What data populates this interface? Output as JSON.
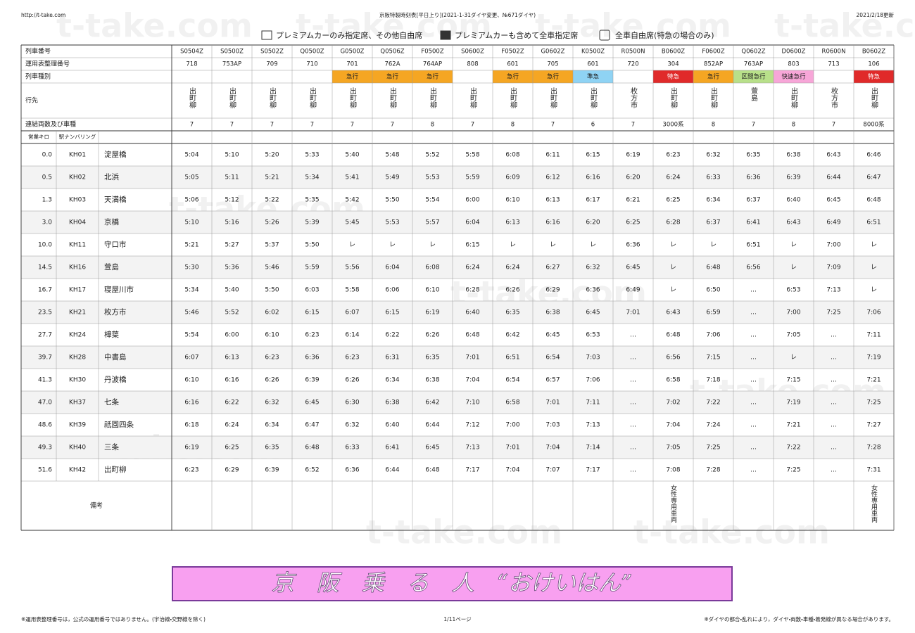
{
  "header": {
    "url": "http://t-take.com",
    "title": "京阪特製時刻表[平日上り](2021-1-31ダイヤ変更、№671ダイヤ)",
    "updated": "2021/2/18更新"
  },
  "legend": [
    "プレミアムカーのみ指定席、その他自由席",
    "プレミアムカーも含めて全車指定席",
    "全車自由席(特急の場合のみ)"
  ],
  "watermark": "t-take.com",
  "table": {
    "row_labels": [
      "列車番号",
      "運用表整理番号",
      "列車種別",
      "行先",
      "連結両数及び車種"
    ],
    "column_labels": [
      "営業キロ",
      "駅ナンバリング"
    ],
    "notes_label": "備考",
    "trains": [
      {
        "number": "S0504Z",
        "run": "718",
        "dest": "出町柳",
        "cars": "7"
      },
      {
        "number": "S0500Z",
        "run": "753AP",
        "dest": "出町柳",
        "cars": "7"
      },
      {
        "number": "S0502Z",
        "run": "709",
        "dest": "出町柳",
        "cars": "7"
      },
      {
        "number": "Q0500Z",
        "run": "710",
        "dest": "出町柳",
        "cars": "7"
      },
      {
        "number": "G0500Z",
        "run": "701",
        "type": "急行",
        "color": "#f5a623",
        "dest": "出町柳",
        "cars": "7"
      },
      {
        "number": "Q0506Z",
        "run": "762A",
        "type": "急行",
        "color": "#f5a623",
        "dest": "出町柳",
        "cars": "7"
      },
      {
        "number": "F0500Z",
        "run": "764AP",
        "type": "急行",
        "color": "#f5a623",
        "dest": "出町柳",
        "cars": "8"
      },
      {
        "number": "S0600Z",
        "run": "808",
        "dest": "出町柳",
        "cars": "7"
      },
      {
        "number": "F0502Z",
        "run": "601",
        "type": "急行",
        "color": "#f5a623",
        "dest": "出町柳",
        "cars": "8"
      },
      {
        "number": "G0602Z",
        "run": "705",
        "type": "急行",
        "color": "#f5a623",
        "dest": "出町柳",
        "cars": "7"
      },
      {
        "number": "K0500Z",
        "run": "601",
        "type": "準急",
        "color": "#8fd3f4",
        "dest": "出町柳",
        "cars": "6"
      },
      {
        "number": "R0500N",
        "run": "720",
        "dest": "枚方市",
        "cars": "7"
      },
      {
        "number": "B0600Z",
        "run": "304",
        "type": "特急",
        "color": "#e02a2a",
        "dest": "出町柳",
        "cars": "3000系",
        "notes": "女性専用車両"
      },
      {
        "number": "F0600Z",
        "run": "852AP",
        "type": "急行",
        "color": "#f5a623",
        "dest": "出町柳",
        "cars": "8"
      },
      {
        "number": "Q0602Z",
        "run": "763AP",
        "type": "区間急行",
        "color": "#b8e08a",
        "dest": "萱島",
        "cars": "7"
      },
      {
        "number": "D0600Z",
        "run": "803",
        "type": "快速急行",
        "color": "#f7a6d8",
        "dest": "出町柳",
        "cars": "8"
      },
      {
        "number": "R0600N",
        "run": "713",
        "dest": "枚方市",
        "cars": "7"
      },
      {
        "number": "B0602Z",
        "run": "106",
        "type": "特急",
        "color": "#e02a2a",
        "dest": "出町柳",
        "cars": "8000系",
        "notes": "女性専用車両"
      }
    ],
    "stations": [
      {
        "km": "0.0",
        "code": "KH01",
        "name": "淀屋橋",
        "times": [
          "5:04",
          "5:10",
          "5:20",
          "5:33",
          "5:40",
          "5:48",
          "5:52",
          "5:58",
          "6:08",
          "6:11",
          "6:15",
          "6:19",
          "6:23",
          "6:32",
          "6:35",
          "6:38",
          "6:43",
          "6:46"
        ]
      },
      {
        "km": "0.5",
        "code": "KH02",
        "name": "北浜",
        "times": [
          "5:05",
          "5:11",
          "5:21",
          "5:34",
          "5:41",
          "5:49",
          "5:53",
          "5:59",
          "6:09",
          "6:12",
          "6:16",
          "6:20",
          "6:24",
          "6:33",
          "6:36",
          "6:39",
          "6:44",
          "6:47"
        ]
      },
      {
        "km": "1.3",
        "code": "KH03",
        "name": "天満橋",
        "times": [
          "5:06",
          "5:12",
          "5:22",
          "5:35",
          "5:42",
          "5:50",
          "5:54",
          "6:00",
          "6:10",
          "6:13",
          "6:17",
          "6:21",
          "6:25",
          "6:34",
          "6:37",
          "6:40",
          "6:45",
          "6:48"
        ]
      },
      {
        "km": "3.0",
        "code": "KH04",
        "name": "京橋",
        "times": [
          "5:10",
          "5:16",
          "5:26",
          "5:39",
          "5:45",
          "5:53",
          "5:57",
          "6:04",
          "6:13",
          "6:16",
          "6:20",
          "6:25",
          "6:28",
          "6:37",
          "6:41",
          "6:43",
          "6:49",
          "6:51"
        ]
      },
      {
        "km": "10.0",
        "code": "KH11",
        "name": "守口市",
        "times": [
          "5:21",
          "5:27",
          "5:37",
          "5:50",
          "レ",
          "レ",
          "レ",
          "6:15",
          "レ",
          "レ",
          "レ",
          "6:36",
          "レ",
          "レ",
          "6:51",
          "レ",
          "7:00",
          "レ"
        ]
      },
      {
        "km": "14.5",
        "code": "KH16",
        "name": "萱島",
        "times": [
          "5:30",
          "5:36",
          "5:46",
          "5:59",
          "5:56",
          "6:04",
          "6:08",
          "6:24",
          "6:24",
          "6:27",
          "6:32",
          "6:45",
          "レ",
          "6:48",
          "6:56",
          "レ",
          "7:09",
          "レ"
        ]
      },
      {
        "km": "16.7",
        "code": "KH17",
        "name": "寝屋川市",
        "times": [
          "5:34",
          "5:40",
          "5:50",
          "6:03",
          "5:58",
          "6:06",
          "6:10",
          "6:28",
          "6:26",
          "6:29",
          "6:36",
          "6:49",
          "レ",
          "6:50",
          "…",
          "6:53",
          "7:13",
          "レ"
        ]
      },
      {
        "km": "23.5",
        "code": "KH21",
        "name": "枚方市",
        "times": [
          "5:46",
          "5:52",
          "6:02",
          "6:15",
          "6:07",
          "6:15",
          "6:19",
          "6:40",
          "6:35",
          "6:38",
          "6:45",
          "7:01",
          "6:43",
          "6:59",
          "…",
          "7:00",
          "7:25",
          "7:06"
        ]
      },
      {
        "km": "27.7",
        "code": "KH24",
        "name": "樟葉",
        "times": [
          "5:54",
          "6:00",
          "6:10",
          "6:23",
          "6:14",
          "6:22",
          "6:26",
          "6:48",
          "6:42",
          "6:45",
          "6:53",
          "…",
          "6:48",
          "7:06",
          "…",
          "7:05",
          "…",
          "7:11"
        ]
      },
      {
        "km": "39.7",
        "code": "KH28",
        "name": "中書島",
        "times": [
          "6:07",
          "6:13",
          "6:23",
          "6:36",
          "6:23",
          "6:31",
          "6:35",
          "7:01",
          "6:51",
          "6:54",
          "7:03",
          "…",
          "6:56",
          "7:15",
          "…",
          "レ",
          "…",
          "7:19"
        ]
      },
      {
        "km": "41.3",
        "code": "KH30",
        "name": "丹波橋",
        "times": [
          "6:10",
          "6:16",
          "6:26",
          "6:39",
          "6:26",
          "6:34",
          "6:38",
          "7:04",
          "6:54",
          "6:57",
          "7:06",
          "…",
          "6:58",
          "7:18",
          "…",
          "7:15",
          "…",
          "7:21"
        ]
      },
      {
        "km": "47.0",
        "code": "KH37",
        "name": "七条",
        "times": [
          "6:16",
          "6:22",
          "6:32",
          "6:45",
          "6:30",
          "6:38",
          "6:42",
          "7:10",
          "6:58",
          "7:01",
          "7:11",
          "…",
          "7:02",
          "7:22",
          "…",
          "7:19",
          "…",
          "7:25"
        ]
      },
      {
        "km": "48.6",
        "code": "KH39",
        "name": "祇園四条",
        "times": [
          "6:18",
          "6:24",
          "6:34",
          "6:47",
          "6:32",
          "6:40",
          "6:44",
          "7:12",
          "7:00",
          "7:03",
          "7:13",
          "…",
          "7:04",
          "7:24",
          "…",
          "7:21",
          "…",
          "7:27"
        ]
      },
      {
        "km": "49.3",
        "code": "KH40",
        "name": "三条",
        "times": [
          "6:19",
          "6:25",
          "6:35",
          "6:48",
          "6:33",
          "6:41",
          "6:45",
          "7:13",
          "7:01",
          "7:04",
          "7:14",
          "…",
          "7:05",
          "7:25",
          "…",
          "7:22",
          "…",
          "7:28"
        ]
      },
      {
        "km": "51.6",
        "code": "KH42",
        "name": "出町柳",
        "times": [
          "6:23",
          "6:29",
          "6:39",
          "6:52",
          "6:36",
          "6:44",
          "6:48",
          "7:17",
          "7:04",
          "7:07",
          "7:17",
          "…",
          "7:08",
          "7:28",
          "…",
          "7:25",
          "…",
          "7:31"
        ]
      }
    ]
  },
  "banner": "京　阪　乗　る　人　“おけいはん”",
  "footer": {
    "left": "※運用表整理番号は，公式の運用番号ではありません。(宇治線・交野線を除く)",
    "page": "1/11ページ",
    "right": "※ダイヤの都合・乱れにより，ダイヤ・両数・車種・着発線が異なる場合があります。"
  }
}
